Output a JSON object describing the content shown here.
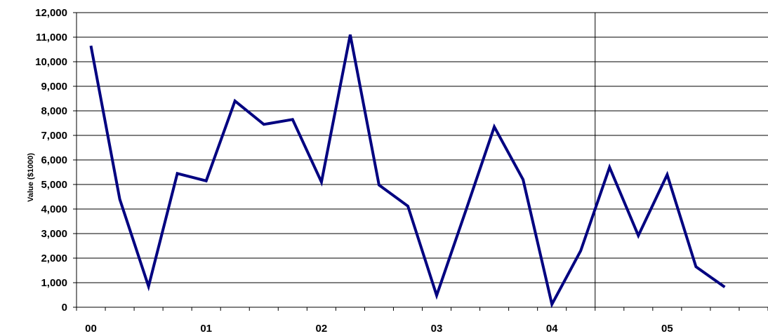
{
  "chart_data": {
    "type": "line",
    "title": "",
    "xlabel": "",
    "ylabel": "Value ($1000)",
    "ylim": [
      0,
      12000
    ],
    "yticks": [
      "0",
      "1,000",
      "2,000",
      "3,000",
      "4,000",
      "5,000",
      "6,000",
      "7,000",
      "8,000",
      "9,000",
      "10,000",
      "11,000",
      "12,000"
    ],
    "year_labels": [
      "00",
      "01",
      "02",
      "03",
      "04",
      "05"
    ],
    "quarters_per_year": 4,
    "series": [
      {
        "color": "#000080",
        "values": [
          10650,
          4400,
          850,
          5450,
          5150,
          8400,
          7450,
          7650,
          5100,
          11100,
          4980,
          4120,
          480,
          3900,
          7350,
          5200,
          120,
          2300,
          5700,
          2920,
          5400,
          1650,
          820
        ]
      }
    ],
    "reference_line_after_index": 17.5,
    "grid": true,
    "legend": "none"
  }
}
